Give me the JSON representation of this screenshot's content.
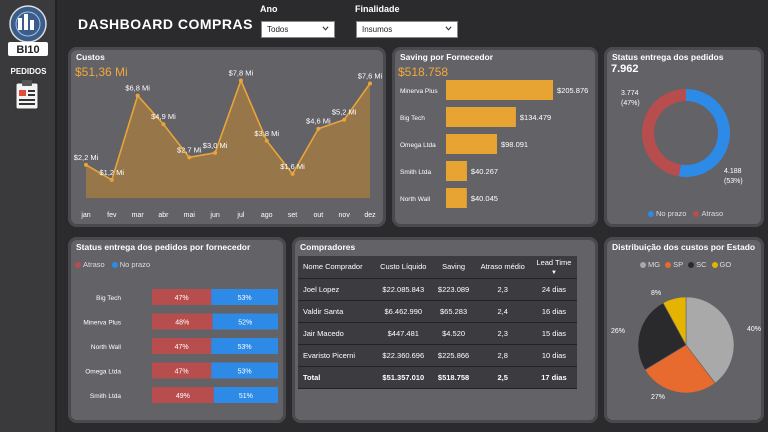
{
  "app": {
    "title": "DASHBOARD COMPRAS",
    "logo_text": "BI10"
  },
  "nav": {
    "items": [
      {
        "label": "PEDIDOS"
      }
    ]
  },
  "filters": {
    "ano": {
      "label": "Ano",
      "value": "Todos"
    },
    "finalidade": {
      "label": "Finalidade",
      "value": "Insumos"
    }
  },
  "custos": {
    "title": "Custos",
    "total": "$51,36 Mi",
    "chart_data": {
      "type": "area",
      "title": "Custos",
      "categories": [
        "jan",
        "fev",
        "mar",
        "abr",
        "mai",
        "jun",
        "jul",
        "ago",
        "set",
        "out",
        "nov",
        "dez"
      ],
      "values": [
        2.2,
        1.2,
        6.8,
        4.9,
        2.7,
        3.0,
        7.8,
        3.8,
        1.6,
        4.6,
        5.2,
        7.6
      ],
      "data_labels": [
        "$2,2 Mi",
        "$1,2 Mi",
        "$6,8 Mi",
        "$4,9 Mi",
        "$2,7 Mi",
        "$3,0 Mi",
        "$7,8 Mi",
        "$3,8 Mi",
        "$1,6 Mi",
        "$4,6 Mi",
        "$5,2 Mi",
        "$7,6 Mi"
      ],
      "unit": "Mi",
      "ylim": [
        0,
        8.5
      ],
      "grid": false,
      "colors": {
        "line": "#e9a53a",
        "fill": "#a07a45"
      }
    }
  },
  "saving": {
    "title": "Saving por Fornecedor",
    "total": "$518.758",
    "chart_data": {
      "type": "bar",
      "orientation": "horizontal",
      "categories": [
        "Minerva Plus",
        "Big Tech",
        "Omega Ltda",
        "Smith Ltda",
        "North Wall"
      ],
      "values": [
        205876,
        134479,
        98091,
        40267,
        40045
      ],
      "data_labels": [
        "$205.876",
        "$134.479",
        "$98.091",
        "$40.267",
        "$40.045"
      ],
      "colors": {
        "bar": "#e8a433"
      }
    }
  },
  "status": {
    "title": "Status entrega dos pedidos",
    "total": "7.962",
    "chart_data": {
      "type": "pie",
      "donut": true,
      "categories": [
        "No prazo",
        "Atraso"
      ],
      "values": [
        4188,
        3774
      ],
      "data_labels": [
        {
          "value": "4.188",
          "pct": "(53%)"
        },
        {
          "value": "3.774",
          "pct": "(47%)"
        }
      ],
      "colors": [
        "#2d8ae6",
        "#b84d4d"
      ],
      "legend": "bottom"
    },
    "legend": [
      {
        "label": "No prazo",
        "color": "#2d8ae6"
      },
      {
        "label": "Atraso",
        "color": "#b84d4d"
      }
    ]
  },
  "fornecedor_status": {
    "title": "Status entrega dos pedidos por fornecedor",
    "legend": [
      {
        "label": "Atraso",
        "color": "#b84d4d"
      },
      {
        "label": "No prazo",
        "color": "#2d8ae6"
      }
    ],
    "chart_data": {
      "type": "bar",
      "stacked": true,
      "percent": true,
      "orientation": "horizontal",
      "categories": [
        "Big Tech",
        "Minerva Plus",
        "North Wall",
        "Omega Ltda",
        "Smith Ltda"
      ],
      "series": [
        {
          "name": "Atraso",
          "values": [
            47,
            48,
            47,
            47,
            49
          ]
        },
        {
          "name": "No prazo",
          "values": [
            53,
            52,
            53,
            53,
            51
          ]
        }
      ],
      "colors": [
        "#b84d4d",
        "#2d8ae6"
      ]
    }
  },
  "compradores": {
    "title": "Compradores",
    "columns": [
      "Nome Comprador",
      "Custo Líquido",
      "Saving",
      "Atraso médio",
      "Lead Time"
    ],
    "rows": [
      [
        "Joel Lopez",
        "$22.085.843",
        "$223.089",
        "2,3",
        "24 dias"
      ],
      [
        "Valdir Santa",
        "$6.462.990",
        "$65.283",
        "2,4",
        "16 dias"
      ],
      [
        "Jair Macedo",
        "$447.481",
        "$4.520",
        "2,3",
        "15 dias"
      ],
      [
        "Evaristo Picerni",
        "$22.360.696",
        "$225.866",
        "2,8",
        "10 dias"
      ]
    ],
    "total": [
      "Total",
      "$51.357.010",
      "$518.758",
      "2,5",
      "17 dias"
    ]
  },
  "estado": {
    "title": "Distribuição dos custos por Estado",
    "legend": [
      {
        "label": "MG",
        "color": "#a9a9a9"
      },
      {
        "label": "SP",
        "color": "#e76a2e"
      },
      {
        "label": "SC",
        "color": "#2a2a2c"
      },
      {
        "label": "GO",
        "color": "#e5b400"
      }
    ],
    "chart_data": {
      "type": "pie",
      "categories": [
        "MG",
        "SP",
        "SC",
        "GO"
      ],
      "values": [
        40,
        27,
        26,
        8
      ],
      "data_labels": [
        "40%",
        "27%",
        "26%",
        "8%"
      ],
      "colors": [
        "#a9a9a9",
        "#e76a2e",
        "#2a2a2c",
        "#e5b400"
      ],
      "legend": "top"
    }
  }
}
